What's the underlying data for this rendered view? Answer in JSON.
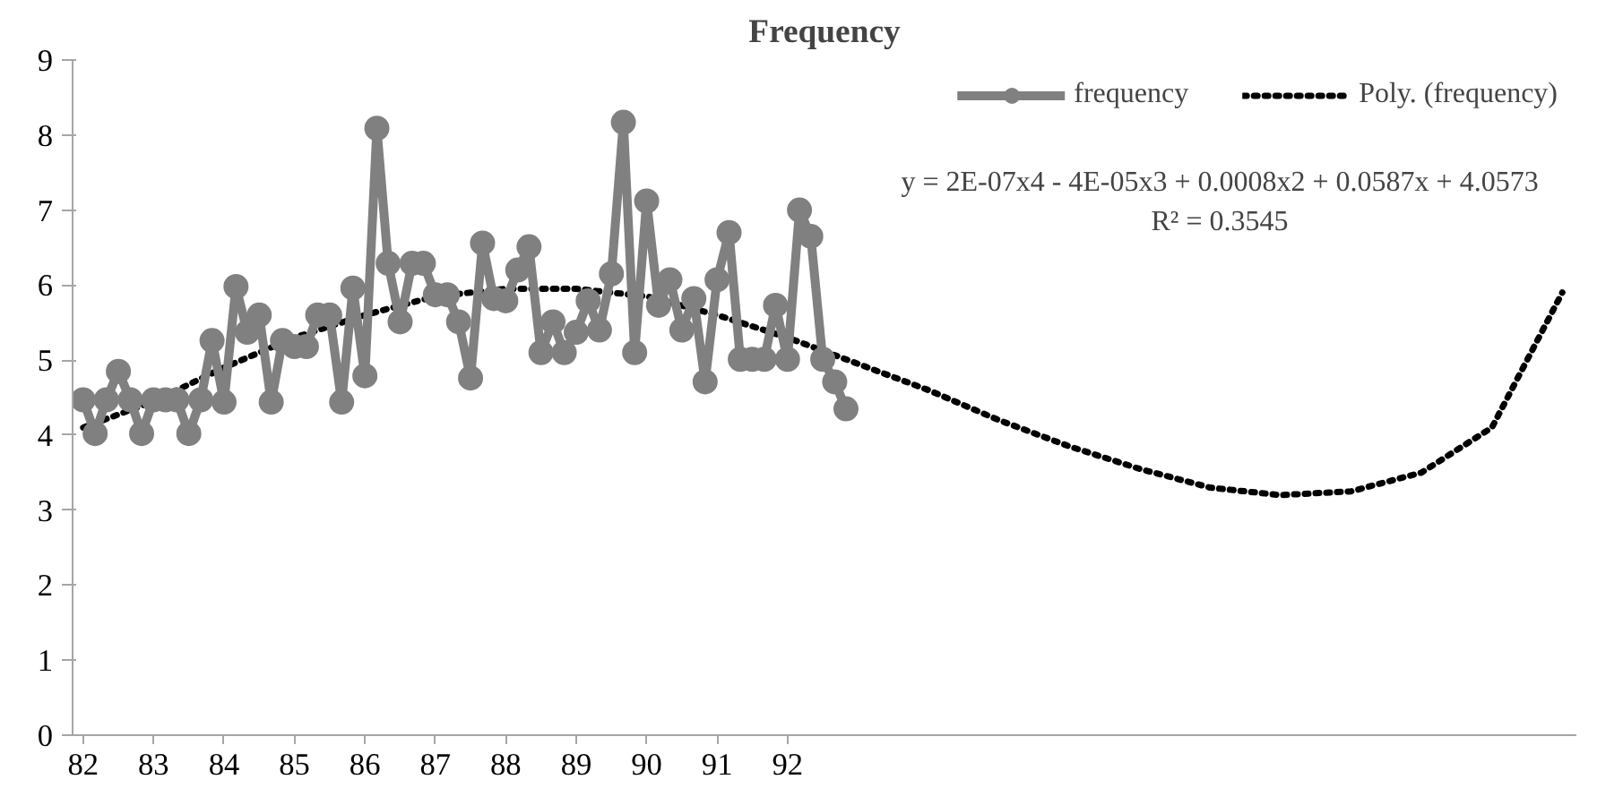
{
  "chart_data": {
    "type": "line",
    "title": "Frequency",
    "xlim": [
      81.85,
      103.2
    ],
    "xticks": [
      82,
      83,
      84,
      85,
      86,
      87,
      88,
      89,
      90,
      91,
      92
    ],
    "ylim": [
      0,
      9
    ],
    "yticks": [
      0,
      1,
      2,
      3,
      4,
      5,
      6,
      7,
      8,
      9
    ],
    "grid": false,
    "legend": "top right",
    "x": [
      82,
      82.17,
      82.33,
      82.5,
      82.67,
      82.83,
      83,
      83.17,
      83.33,
      83.5,
      83.67,
      83.83,
      84,
      84.17,
      84.33,
      84.5,
      84.67,
      84.83,
      85,
      85.17,
      85.33,
      85.5,
      85.67,
      85.83,
      86,
      86.17,
      86.33,
      86.5,
      86.67,
      86.83,
      87,
      87.17,
      87.33,
      87.5,
      87.67,
      87.83,
      88,
      88.17,
      88.33,
      88.5,
      88.67,
      88.83,
      89,
      89.17,
      89.33,
      89.5,
      89.67,
      89.83,
      90,
      90.17,
      90.33,
      90.5,
      90.67,
      90.83,
      91,
      91.17,
      91.33,
      91.5,
      91.67,
      91.83,
      92,
      92.17,
      92.33,
      92.5,
      92.67,
      92.83
    ],
    "series": [
      {
        "name": "frequency",
        "color": "#808080",
        "marker": "circle",
        "line_style": "solid",
        "values": [
          4.47,
          4.02,
          4.47,
          4.85,
          4.47,
          4.02,
          4.47,
          4.47,
          4.47,
          4.02,
          4.47,
          5.26,
          4.44,
          5.98,
          5.37,
          5.6,
          4.44,
          5.26,
          5.18,
          5.18,
          5.6,
          5.6,
          4.44,
          5.96,
          4.79,
          8.09,
          6.29,
          5.51,
          6.29,
          6.29,
          5.87,
          5.87,
          5.51,
          4.76,
          6.56,
          5.82,
          5.79,
          6.2,
          6.51,
          5.1,
          5.51,
          5.1,
          5.37,
          5.79,
          5.4,
          6.15,
          8.17,
          5.1,
          7.12,
          5.73,
          6.07,
          5.4,
          5.82,
          4.71,
          6.07,
          6.7,
          5.01,
          5.01,
          5.01,
          5.73,
          5.01,
          7.0,
          6.65,
          5.01,
          4.71,
          4.35
        ]
      },
      {
        "name": "Poly. (frequency)",
        "color": "#000000",
        "marker": "none",
        "line_style": "dotted",
        "x": [
          82,
          83,
          84,
          85,
          86,
          87,
          88,
          89,
          90,
          91,
          92,
          93,
          94,
          95,
          96,
          97,
          98,
          99,
          100,
          101,
          102,
          103
        ],
        "values": [
          4.1,
          4.45,
          4.9,
          5.3,
          5.6,
          5.85,
          5.95,
          5.95,
          5.85,
          5.6,
          5.3,
          4.95,
          4.6,
          4.2,
          3.85,
          3.55,
          3.3,
          3.2,
          3.25,
          3.5,
          4.1,
          5.9
        ]
      }
    ],
    "annotations": [
      "y = 2E-07x4 - 4E-05x3 + 0.0008x2 + 0.0587x + 4.0573",
      "R² = 0.3545"
    ]
  }
}
